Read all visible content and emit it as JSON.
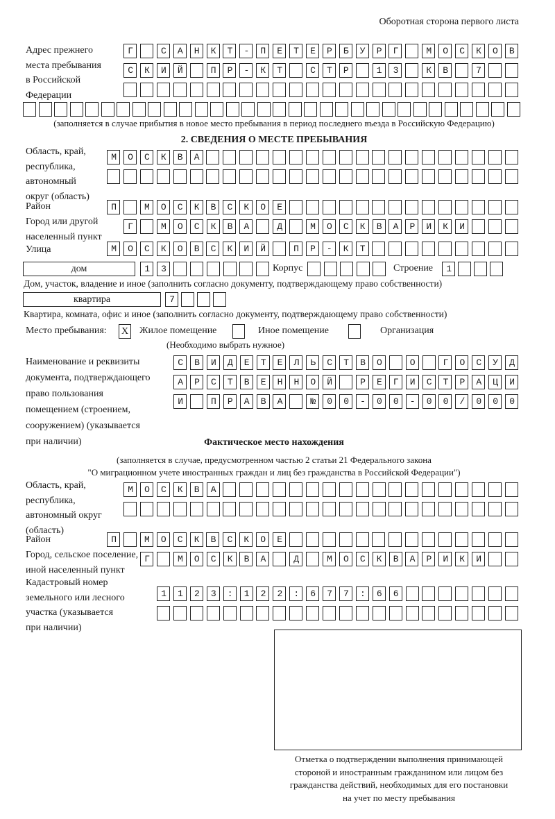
{
  "header": {
    "side_note": "Оборотная сторона первого листа"
  },
  "prev_address": {
    "label": [
      "Адрес прежнего",
      "места пребывания",
      "в Российской",
      "Федерации"
    ],
    "rows": [
      "Г САНКТ-ПЕТЕРБУРГ МОСКОВ",
      "СКИЙ ПР-КТ СТР 13 КВ 7  ",
      "",
      ""
    ],
    "note": "(заполняется в случае прибытия в новое место пребывания в период последнего въезда в Российскую Федерацию)"
  },
  "section2": {
    "title": "2. СВЕДЕНИЯ О МЕСТЕ ПРЕБЫВАНИЯ",
    "region_label": [
      "Область, край,",
      "республика,",
      "автономный",
      "округ (область)"
    ],
    "region_rows": [
      "МОСКВА",
      ""
    ],
    "district_label": "Район",
    "district": "П МОСКВСКОЕ",
    "city_label": [
      "Город или другой",
      "населенный пункт"
    ],
    "city": "Г МОСКВА Д МОСКВАРИКИ",
    "street_label": "Улица",
    "street": "МОСКОВСКИЙ ПР-КТ",
    "house_type": "дом",
    "house": "13",
    "korpus_label": "Корпус",
    "korpus": "",
    "building_label": "Строение",
    "building": "1",
    "house_note": "Дом, участок, владение и иное (заполнить согласно документу, подтверждающему право собственности)",
    "flat_type": "квартира",
    "flat": "7",
    "flat_note": "Квартира, комната, офис и иное (заполнить согласно документу, подтверждающему право собственности)",
    "stay_label": "Место пребывания:",
    "stay_options": [
      {
        "label": "Жилое помещение",
        "mark": "X"
      },
      {
        "label": "Иное помещение",
        "mark": ""
      },
      {
        "label": "Организация",
        "mark": ""
      }
    ],
    "stay_note": "(Необходимо выбрать нужное)",
    "doc_label": [
      "Наименование и реквизиты",
      "документа, подтверждающего",
      "право пользования",
      "помещением (строением,",
      "сооружением) (указывается",
      "при наличии)"
    ],
    "doc_rows": [
      "СВИДЕТЕЛЬСТВО О ГОСУД",
      "АРСТВЕННОЙ РЕГИСТРАЦИ",
      "И ПРАВА №00-00-00/000"
    ]
  },
  "actual": {
    "title": "Фактическое место нахождения",
    "subtitle": [
      "(заполняется в случае, предусмотренном частью 2 статьи 21 Федерального закона",
      "\"О миграционном учете иностранных граждан и лиц без гражданства в Российской Федерации\")"
    ],
    "region_label": [
      "Область, край,",
      "республика,",
      "автономный округ",
      "(область)"
    ],
    "region_rows": [
      "МОСКВА",
      ""
    ],
    "district_label": "Район",
    "district": "П МОСКВСКОЕ",
    "city_label": [
      "Город, сельское поселение,",
      "иной населенный пункт"
    ],
    "city": "Г МОСКВА Д МОСКВАРИКИ",
    "cadastral_label": [
      "Кадастровый номер",
      "земельного или лесного",
      "участка (указывается",
      "при наличии)"
    ],
    "cadastral_rows": [
      "1123:122:677:66",
      ""
    ]
  },
  "stamp": {
    "caption": [
      "Отметка о подтверждении выполнения принимающей",
      "стороной и иностранным гражданином или лицом без",
      "гражданства действий, необходимых для его постановки",
      "на учет по месту пребывания"
    ]
  }
}
